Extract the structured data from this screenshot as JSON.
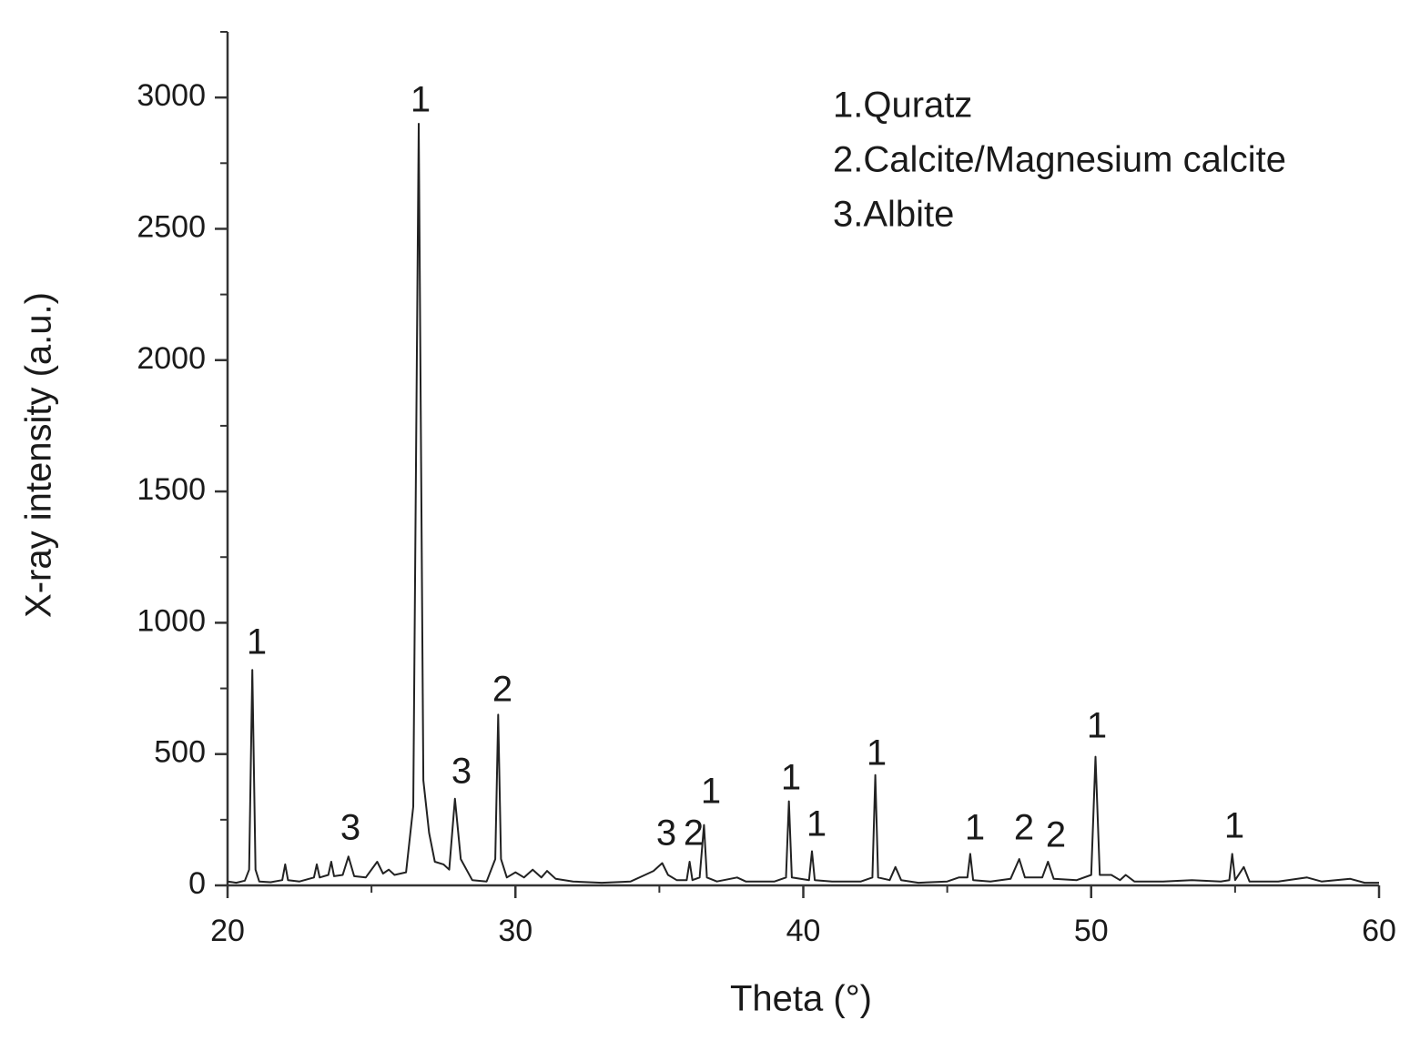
{
  "chart_data": {
    "type": "line",
    "xlabel": "Theta (°)",
    "ylabel": "X-ray intensity (a.u.)",
    "color": "#222222",
    "x": [
      20,
      20.3,
      20.6,
      20.75,
      20.86,
      20.97,
      21.1,
      21.5,
      21.9,
      22.0,
      22.1,
      22.5,
      23.0,
      23.1,
      23.2,
      23.5,
      23.6,
      23.7,
      24.0,
      24.2,
      24.4,
      24.8,
      25.2,
      25.4,
      25.6,
      25.8,
      26.2,
      26.45,
      26.64,
      26.8,
      27.0,
      27.2,
      27.5,
      27.7,
      27.9,
      28.1,
      28.3,
      28.5,
      29.0,
      29.3,
      29.4,
      29.5,
      29.7,
      30.0,
      30.3,
      30.6,
      30.9,
      31.1,
      31.4,
      32,
      33,
      34,
      34.5,
      34.8,
      35.1,
      35.3,
      35.6,
      35.95,
      36.05,
      36.15,
      36.4,
      36.55,
      36.65,
      37.0,
      37.7,
      38.0,
      39.0,
      39.4,
      39.5,
      39.6,
      40.2,
      40.3,
      40.4,
      41,
      42,
      42.4,
      42.5,
      42.6,
      43.0,
      43.2,
      43.4,
      44,
      45,
      45.4,
      45.7,
      45.8,
      45.9,
      46.5,
      47.2,
      47.5,
      47.7,
      48.3,
      48.5,
      48.7,
      49.5,
      50.0,
      50.15,
      50.3,
      50.7,
      51.0,
      51.2,
      51.5,
      52.5,
      53.5,
      54.5,
      54.8,
      54.9,
      55.0,
      55.3,
      55.5,
      56.5,
      57.5,
      58,
      59,
      59.5,
      60
    ],
    "values": [
      15,
      10,
      18,
      60,
      820,
      60,
      15,
      12,
      20,
      80,
      20,
      15,
      30,
      80,
      30,
      40,
      90,
      35,
      40,
      110,
      35,
      30,
      90,
      45,
      60,
      40,
      50,
      300,
      2900,
      400,
      200,
      90,
      80,
      60,
      330,
      100,
      60,
      20,
      15,
      100,
      650,
      100,
      30,
      50,
      30,
      60,
      30,
      55,
      25,
      15,
      10,
      15,
      40,
      55,
      85,
      40,
      20,
      20,
      90,
      20,
      30,
      230,
      30,
      15,
      30,
      15,
      15,
      30,
      320,
      30,
      20,
      130,
      20,
      15,
      15,
      30,
      420,
      30,
      20,
      70,
      20,
      10,
      15,
      30,
      30,
      120,
      20,
      15,
      25,
      100,
      30,
      30,
      90,
      25,
      20,
      40,
      490,
      40,
      40,
      20,
      40,
      15,
      15,
      20,
      15,
      20,
      120,
      20,
      70,
      15,
      15,
      30,
      15,
      25,
      10,
      10
    ],
    "xlim": [
      20,
      60
    ],
    "ylim": [
      0,
      3250
    ],
    "xticks": [
      20,
      30,
      40,
      50,
      60
    ],
    "yticks": [
      0,
      500,
      1000,
      1500,
      2000,
      2500,
      3000
    ],
    "xticks_minor": [
      25,
      35,
      45,
      55
    ],
    "yticks_minor": [
      250,
      750,
      1250,
      1750,
      2250,
      2750,
      3250
    ],
    "annotations": [
      "1",
      "3",
      "1",
      "3",
      "2",
      "3",
      "2",
      "1",
      "1",
      "1",
      "1",
      "1",
      "2",
      "2",
      "1",
      "1"
    ],
    "legend_text": [
      "1.Quratz",
      "2.Calcite/Magnesium calcite",
      "3.Albite"
    ]
  }
}
